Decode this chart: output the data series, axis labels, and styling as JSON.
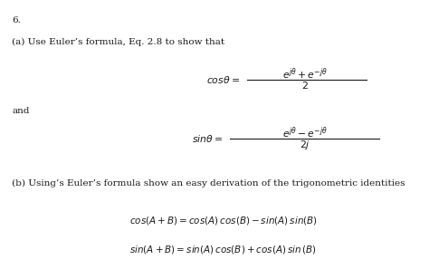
{
  "bg_color": "#ffffff",
  "text_color": "#1a1a1a",
  "title_number": "6.",
  "line_a": "(a) Use Euler’s formula, Eq. 2.8 to show that",
  "cos_label": "$cos\\theta = $",
  "cos_numerator": "$e^{j\\theta} + e^{-j\\theta}$",
  "cos_denominator": "$2$",
  "and_text": "and",
  "sin_label": "$sin\\theta = $",
  "sin_numerator": "$e^{j\\theta} - e^{-j\\theta}$",
  "sin_denominator": "$2j$",
  "line_b": "(b) Using’s Euler’s formula show an easy derivation of the trigonometric identities",
  "eq1": "$cos(A + B) = cos(A)\\,cos(B) - sin(A)\\,sin(B)$",
  "eq2": "$sin(A + B) = sin(A)\\,cos(B) + cos(A)\\,sin\\,(B)$",
  "figsize": [
    4.74,
    3.08
  ],
  "dpi": 100,
  "fs_body": 7.5,
  "fs_math": 7.8,
  "fs_eq": 7.5
}
